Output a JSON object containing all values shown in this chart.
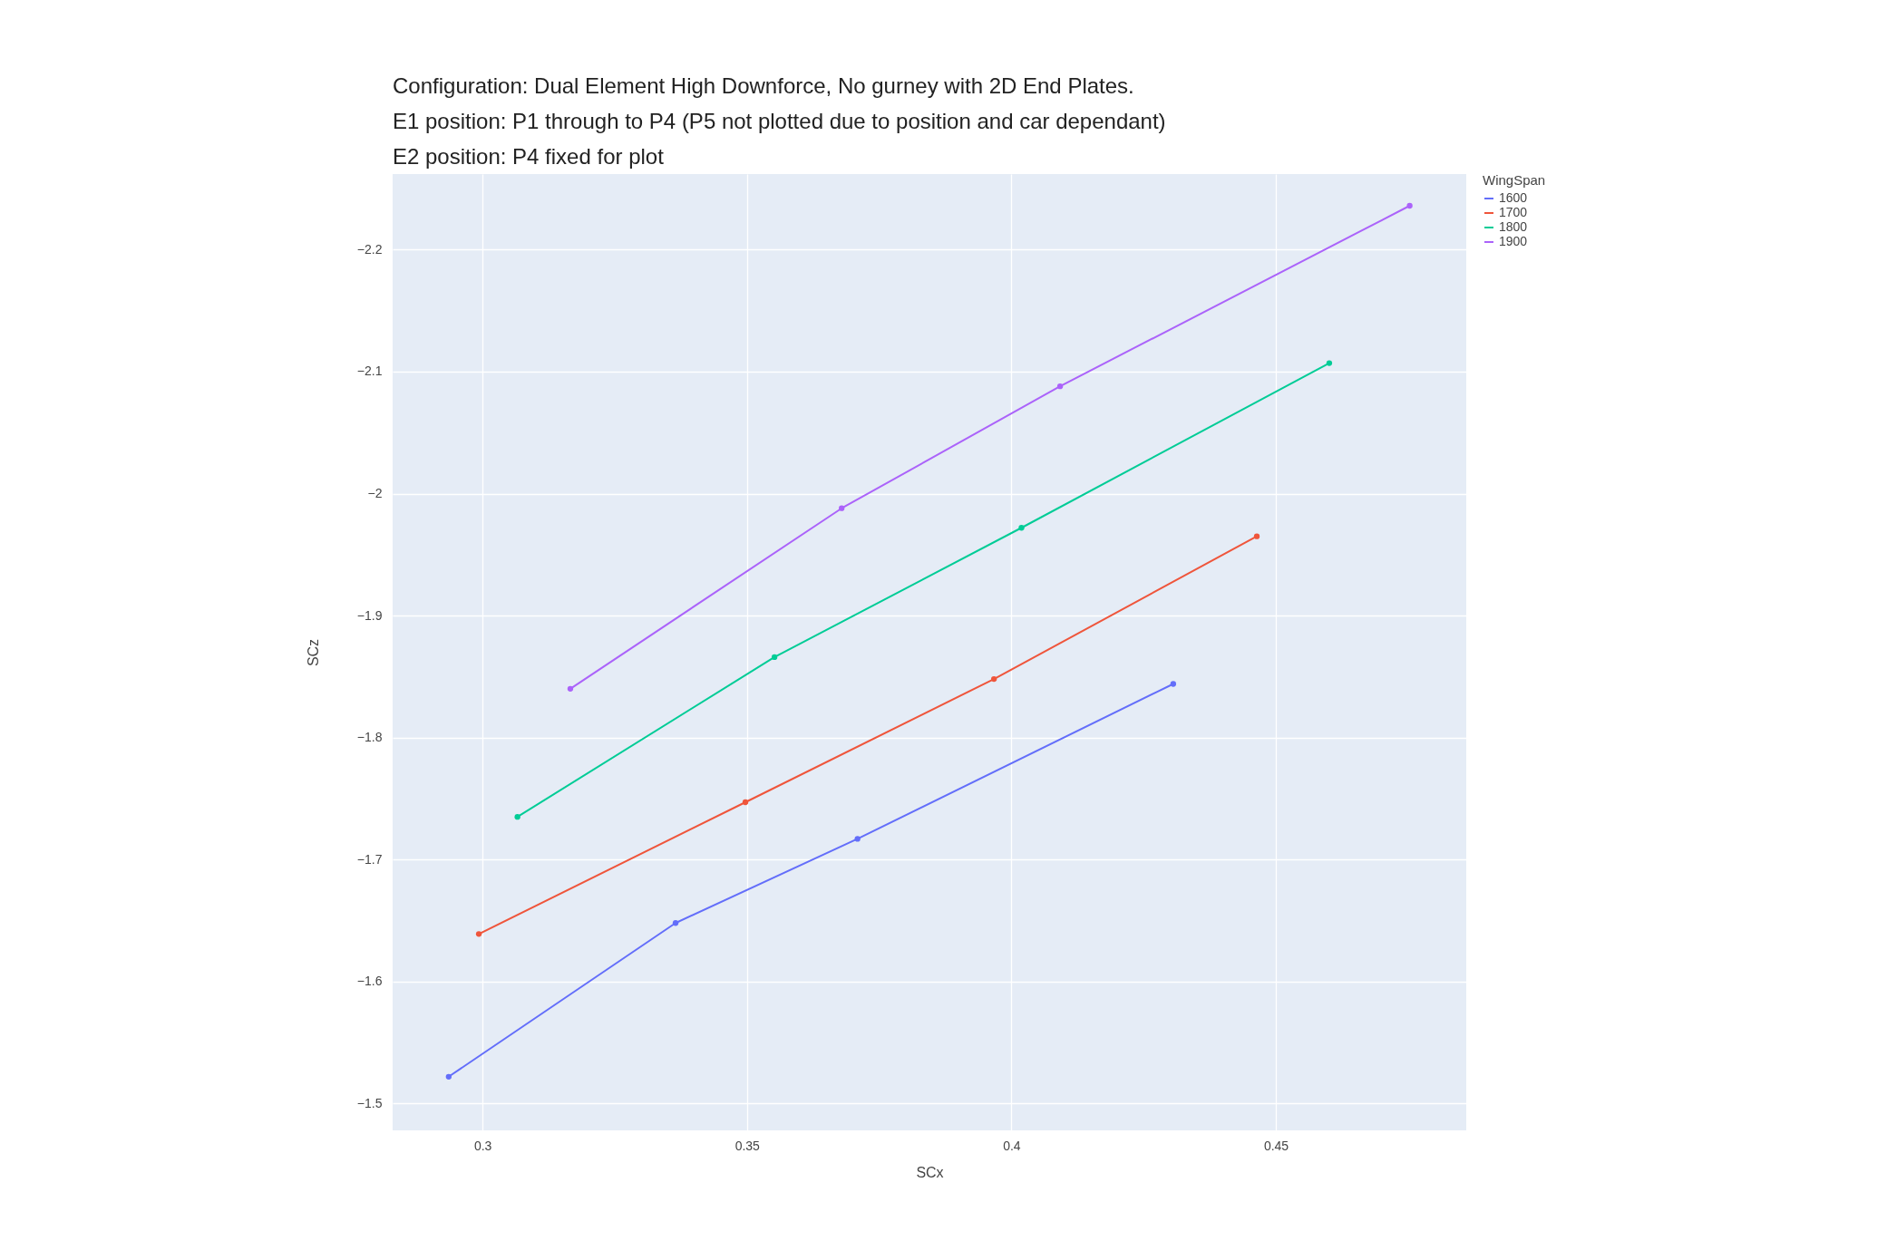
{
  "chart_data": {
    "type": "line",
    "title": "Configuration: Dual Element High Downforce, No gurney with 2D End Plates.\nE1 position: P1 through to P4 (P5 not plotted due to position and car dependant)\nE2 position: P4 fixed for plot",
    "xlabel": "SCx",
    "ylabel": "SCz",
    "legend_title": "WingSpan",
    "series": [
      {
        "name": "1600",
        "color": "#636efa",
        "x": [
          0.2936,
          0.3365,
          0.3709,
          0.4306
        ],
        "values": [
          -1.522,
          -1.648,
          -1.717,
          -1.844
        ]
      },
      {
        "name": "1700",
        "color": "#ef553b",
        "x": [
          0.2993,
          0.3497,
          0.3967,
          0.4464
        ],
        "values": [
          -1.639,
          -1.747,
          -1.848,
          -1.965
        ]
      },
      {
        "name": "1800",
        "color": "#00cc96",
        "x": [
          0.3066,
          0.3552,
          0.4019,
          0.4601
        ],
        "values": [
          -1.735,
          -1.866,
          -1.972,
          -2.107
        ]
      },
      {
        "name": "1900",
        "color": "#ab63fa",
        "x": [
          0.3166,
          0.3679,
          0.4092,
          0.4753
        ],
        "values": [
          -1.84,
          -1.988,
          -2.088,
          -2.236
        ]
      }
    ],
    "xlim": [
      0.283,
      0.486
    ],
    "xticks": [
      0.3,
      0.35,
      0.4,
      0.45
    ],
    "ylim": [
      -1.478,
      -2.262
    ],
    "yticks": [
      {
        "value": -1.5,
        "label": "−1.5"
      },
      {
        "value": -1.6,
        "label": "−1.6"
      },
      {
        "value": -1.7,
        "label": "−1.7"
      },
      {
        "value": -1.8,
        "label": "−1.8"
      },
      {
        "value": -1.9,
        "label": "−1.9"
      },
      {
        "value": -2,
        "label": "−2"
      },
      {
        "value": -2.1,
        "label": "−2.1"
      },
      {
        "value": -2.2,
        "label": "−2.2"
      }
    ],
    "grid": true,
    "legend": "top right",
    "marker": "circle",
    "line_style": "solid"
  }
}
